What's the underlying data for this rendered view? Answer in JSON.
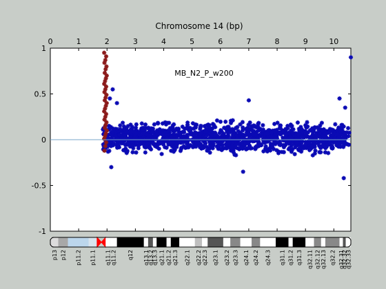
{
  "chart_data": {
    "type": "scatter",
    "title": "Chromosome 14 (bp)",
    "annotation": "MB_N2_P_w200",
    "x_axis_position": "top",
    "xlim": [
      0,
      10.6
    ],
    "ylim": [
      -1,
      1
    ],
    "x_ticks": [
      0,
      1,
      2,
      3,
      4,
      5,
      6,
      7,
      8,
      9,
      10
    ],
    "x_tick_labels": [
      "0",
      "1",
      "2",
      "3",
      "4",
      "5",
      "6",
      "7",
      "8",
      "9",
      "10"
    ],
    "y_ticks": [
      1,
      0.5,
      0,
      -0.5,
      -1
    ],
    "y_tick_labels": [
      "1",
      "0.5",
      "0",
      "-0.5",
      "-1"
    ],
    "grid": false,
    "baseline": {
      "y": 0,
      "color": "#7aa6c8"
    },
    "series": [
      {
        "color": "#8b1a1a",
        "marker": "star",
        "x_range": [
          1.9,
          2.0
        ],
        "y_values": [
          0.95,
          0.91,
          0.87,
          0.84,
          0.8,
          0.77,
          0.73,
          0.7,
          0.67,
          0.64,
          0.61,
          0.58,
          0.55,
          0.52,
          0.49,
          0.46,
          0.43,
          0.4,
          0.37,
          0.34,
          0.31,
          0.28,
          0.25,
          0.22,
          0.19,
          0.16,
          0.13,
          0.1,
          0.07,
          0.04,
          0.01,
          -0.03,
          -0.07,
          -0.12
        ]
      },
      {
        "color": "#0a0ab4",
        "marker": "star",
        "x_range": [
          1.85,
          10.55
        ],
        "y_center": 0.0,
        "y_band": [
          -0.25,
          0.3
        ],
        "outliers": [
          {
            "x": 2.2,
            "y": 0.55
          },
          {
            "x": 2.35,
            "y": 0.4
          },
          {
            "x": 2.1,
            "y": 0.45
          },
          {
            "x": 2.15,
            "y": -0.3
          },
          {
            "x": 6.8,
            "y": -0.35
          },
          {
            "x": 10.2,
            "y": 0.45
          },
          {
            "x": 10.35,
            "y": -0.42
          },
          {
            "x": 10.6,
            "y": 0.9
          },
          {
            "x": 10.4,
            "y": 0.35
          },
          {
            "x": 7.0,
            "y": 0.43
          }
        ]
      }
    ]
  },
  "ideogram": {
    "bands": [
      {
        "name": "p13",
        "start": 0.0,
        "end": 0.28,
        "color": "#dcdcdc"
      },
      {
        "name": "p12",
        "start": 0.28,
        "end": 0.62,
        "color": "#a8a8a8"
      },
      {
        "name": "p11.2",
        "start": 0.62,
        "end": 1.35,
        "color": "#bcd6ec"
      },
      {
        "name": "p11.1",
        "start": 1.35,
        "end": 1.65,
        "color": "#d8e4ee"
      },
      {
        "name": "cen",
        "start": 1.65,
        "end": 1.95,
        "color": "#ff0000"
      },
      {
        "name": "q11.1",
        "start": 1.95,
        "end": 2.1,
        "color": "#ffffff"
      },
      {
        "name": "q11.2",
        "start": 2.1,
        "end": 2.35,
        "color": "#ffffff"
      },
      {
        "name": "q12",
        "start": 2.35,
        "end": 3.3,
        "color": "#000000"
      },
      {
        "name": "q13.1",
        "start": 3.3,
        "end": 3.45,
        "color": "#ffffff"
      },
      {
        "name": "q13.2",
        "start": 3.45,
        "end": 3.62,
        "color": "#555555"
      },
      {
        "name": "q13.3",
        "start": 3.62,
        "end": 3.75,
        "color": "#ffffff"
      },
      {
        "name": "q21.1",
        "start": 3.75,
        "end": 4.1,
        "color": "#000000"
      },
      {
        "name": "q21.2",
        "start": 4.1,
        "end": 4.25,
        "color": "#ffffff"
      },
      {
        "name": "q21.3",
        "start": 4.25,
        "end": 4.55,
        "color": "#000000"
      },
      {
        "name": "q22.1",
        "start": 4.55,
        "end": 5.1,
        "color": "#ffffff"
      },
      {
        "name": "q22.2",
        "start": 5.1,
        "end": 5.35,
        "color": "#bfbfbf"
      },
      {
        "name": "q22.3",
        "start": 5.35,
        "end": 5.55,
        "color": "#ffffff"
      },
      {
        "name": "q23.1",
        "start": 5.55,
        "end": 6.1,
        "color": "#555555"
      },
      {
        "name": "q23.2",
        "start": 6.1,
        "end": 6.35,
        "color": "#ffffff"
      },
      {
        "name": "q23.3",
        "start": 6.35,
        "end": 6.7,
        "color": "#888888"
      },
      {
        "name": "q24.1",
        "start": 6.7,
        "end": 7.1,
        "color": "#ffffff"
      },
      {
        "name": "q24.2",
        "start": 7.1,
        "end": 7.4,
        "color": "#888888"
      },
      {
        "name": "q24.3",
        "start": 7.4,
        "end": 7.95,
        "color": "#ffffff"
      },
      {
        "name": "q31.1",
        "start": 7.95,
        "end": 8.4,
        "color": "#000000"
      },
      {
        "name": "q31.2",
        "start": 8.4,
        "end": 8.55,
        "color": "#ffffff"
      },
      {
        "name": "q31.3",
        "start": 8.55,
        "end": 9.0,
        "color": "#000000"
      },
      {
        "name": "q32.11",
        "start": 9.0,
        "end": 9.3,
        "color": "#ffffff"
      },
      {
        "name": "q32.12",
        "start": 9.3,
        "end": 9.55,
        "color": "#888888"
      },
      {
        "name": "q32.13",
        "start": 9.55,
        "end": 9.7,
        "color": "#ffffff"
      },
      {
        "name": "q32.2",
        "start": 9.7,
        "end": 10.2,
        "color": "#888888"
      },
      {
        "name": "q32.31",
        "start": 10.2,
        "end": 10.32,
        "color": "#ffffff"
      },
      {
        "name": "q32.32",
        "start": 10.32,
        "end": 10.42,
        "color": "#555555"
      },
      {
        "name": "q32.33",
        "start": 10.42,
        "end": 10.6,
        "color": "#ffffff"
      }
    ],
    "labels": [
      "p13",
      "p12",
      "p11.2",
      "p11.1",
      "q11.1",
      "q11.2",
      "q12",
      "q13.1",
      "q13.2",
      "q13.3",
      "q21.1",
      "q21.2",
      "q21.3",
      "q22.1",
      "q22.2",
      "q22.3",
      "q23.1",
      "q23.2",
      "q23.3",
      "q24.1",
      "q24.2",
      "q24.3",
      "q31.1",
      "q31.2",
      "q31.3",
      "q32.11",
      "q32.12",
      "q32.13",
      "q32.2",
      "q32.31",
      "q32.32",
      "q32.33"
    ]
  }
}
